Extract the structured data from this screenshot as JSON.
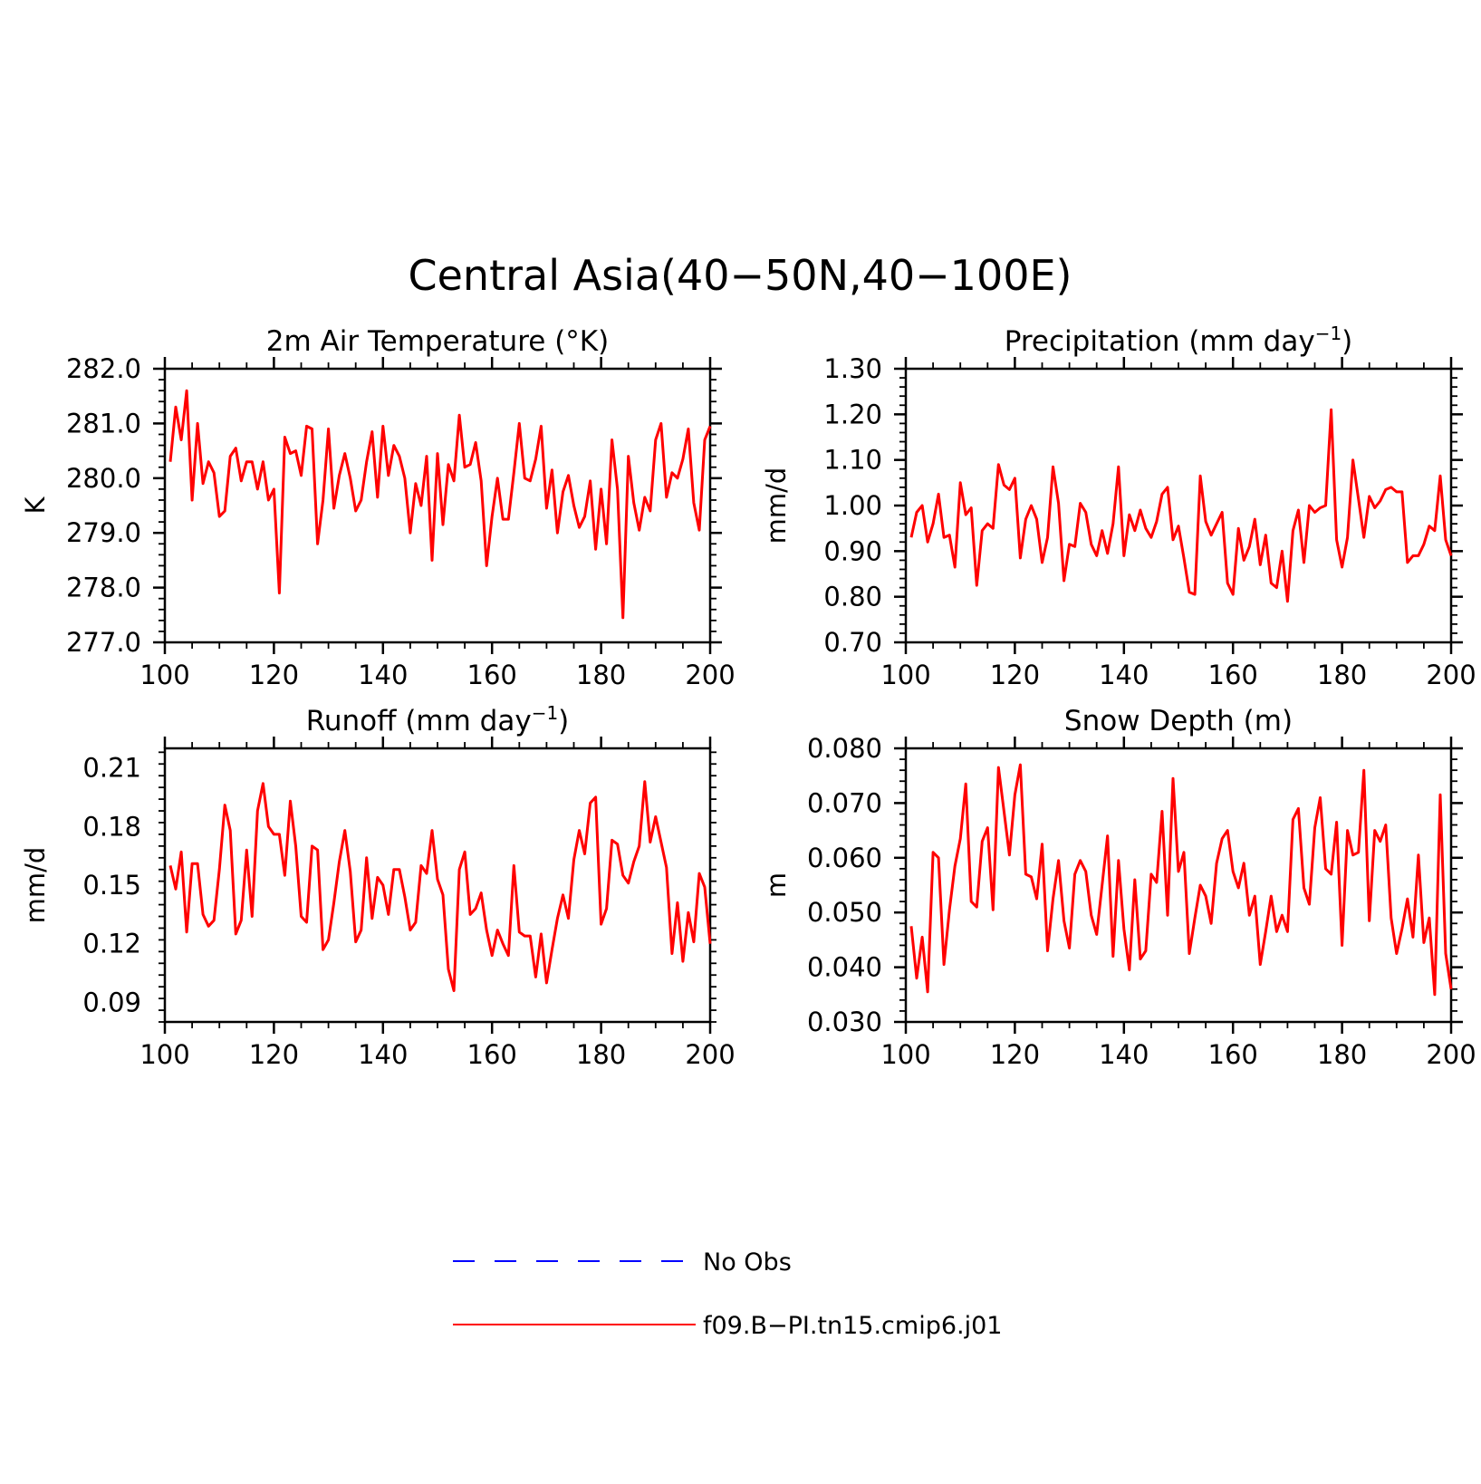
{
  "figure": {
    "title": "Central Asia(40−50N,40−100E)"
  },
  "chart_data": [
    {
      "type": "line",
      "title": "2m Air Temperature (°K)",
      "ylabel": "K",
      "xlim": [
        100,
        200
      ],
      "ylim": [
        277.0,
        282.0
      ],
      "xticks": [
        100,
        120,
        140,
        160,
        180,
        200
      ],
      "xtick_labels": [
        "100",
        "120",
        "140",
        "160",
        "180",
        "200"
      ],
      "yticks": [
        277.0,
        278.0,
        279.0,
        280.0,
        281.0,
        282.0
      ],
      "ytick_labels": [
        "277.0",
        "278.0",
        "279.0",
        "280.0",
        "281.0",
        "282.0"
      ],
      "x_start": 101,
      "series": [
        {
          "color": "#ff0000",
          "values": [
            280.3,
            281.3,
            280.7,
            281.6,
            279.6,
            281.0,
            279.9,
            280.3,
            280.1,
            279.3,
            279.4,
            280.4,
            280.55,
            279.95,
            280.3,
            280.3,
            279.8,
            280.3,
            279.6,
            279.8,
            277.9,
            280.75,
            280.45,
            280.5,
            280.05,
            280.95,
            280.9,
            278.8,
            279.6,
            280.9,
            279.45,
            280.05,
            280.45,
            280.0,
            279.4,
            279.6,
            280.3,
            280.85,
            279.65,
            280.95,
            280.05,
            280.6,
            280.4,
            280.0,
            279.0,
            279.9,
            279.5,
            280.4,
            278.5,
            280.45,
            279.15,
            280.25,
            279.95,
            281.15,
            280.2,
            280.25,
            280.65,
            279.95,
            278.4,
            279.3,
            280.0,
            279.25,
            279.25,
            280.1,
            281.0,
            280.0,
            279.95,
            280.35,
            280.95,
            279.45,
            280.15,
            279.0,
            279.75,
            280.05,
            279.5,
            279.1,
            279.3,
            279.95,
            278.7,
            279.8,
            278.8,
            280.7,
            279.8,
            277.45,
            280.4,
            279.55,
            279.05,
            279.65,
            279.4,
            280.7,
            281.0,
            279.65,
            280.1,
            280.0,
            280.35,
            280.9,
            279.55,
            279.05,
            280.7,
            280.95
          ]
        }
      ]
    },
    {
      "type": "line",
      "title": "Precipitation (mm day",
      "title_sup": "−1",
      "title_end": ")",
      "ylabel": "mm/d",
      "xlim": [
        100,
        200
      ],
      "ylim": [
        0.7,
        1.3
      ],
      "xticks": [
        100,
        120,
        140,
        160,
        180,
        200
      ],
      "xtick_labels": [
        "100",
        "120",
        "140",
        "160",
        "180",
        "200"
      ],
      "yticks": [
        0.7,
        0.8,
        0.9,
        1.0,
        1.1,
        1.2,
        1.3
      ],
      "ytick_labels": [
        "0.70",
        "0.80",
        "0.90",
        "1.00",
        "1.10",
        "1.20",
        "1.30"
      ],
      "x_start": 101,
      "series": [
        {
          "color": "#ff0000",
          "values": [
            0.93,
            0.985,
            1.0,
            0.92,
            0.96,
            1.025,
            0.93,
            0.935,
            0.865,
            1.05,
            0.98,
            0.995,
            0.825,
            0.945,
            0.96,
            0.95,
            1.09,
            1.045,
            1.035,
            1.06,
            0.885,
            0.97,
            1.0,
            0.97,
            0.875,
            0.93,
            1.085,
            1.005,
            0.835,
            0.915,
            0.91,
            1.005,
            0.985,
            0.915,
            0.89,
            0.945,
            0.895,
            0.96,
            1.085,
            0.89,
            0.98,
            0.945,
            0.99,
            0.95,
            0.93,
            0.965,
            1.025,
            1.04,
            0.925,
            0.955,
            0.885,
            0.81,
            0.805,
            1.065,
            0.965,
            0.935,
            0.96,
            0.985,
            0.83,
            0.805,
            0.95,
            0.88,
            0.91,
            0.97,
            0.87,
            0.935,
            0.83,
            0.82,
            0.9,
            0.79,
            0.945,
            0.99,
            0.875,
            1.0,
            0.985,
            0.995,
            1.0,
            1.21,
            0.925,
            0.865,
            0.93,
            1.1,
            1.015,
            0.93,
            1.02,
            0.995,
            1.01,
            1.035,
            1.04,
            1.03,
            1.03,
            0.875,
            0.89,
            0.89,
            0.915,
            0.955,
            0.945,
            1.065,
            0.925,
            0.89
          ]
        }
      ]
    },
    {
      "type": "line",
      "title": "Runoff (mm day",
      "title_sup": "−1",
      "title_end": ")",
      "ylabel": "mm/d",
      "xlim": [
        100,
        200
      ],
      "ylim": [
        0.08,
        0.22
      ],
      "xticks": [
        100,
        120,
        140,
        160,
        180,
        200
      ],
      "xtick_labels": [
        "100",
        "120",
        "140",
        "160",
        "180",
        "200"
      ],
      "yticks": [
        0.09,
        0.12,
        0.15,
        0.18,
        0.21
      ],
      "ytick_labels": [
        "0.09",
        "0.12",
        "0.15",
        "0.18",
        "0.21"
      ],
      "x_start": 101,
      "series": [
        {
          "color": "#ff0000",
          "values": [
            0.16,
            0.148,
            0.167,
            0.126,
            0.161,
            0.161,
            0.135,
            0.129,
            0.132,
            0.158,
            0.191,
            0.178,
            0.125,
            0.132,
            0.168,
            0.134,
            0.188,
            0.202,
            0.18,
            0.176,
            0.176,
            0.155,
            0.193,
            0.17,
            0.134,
            0.131,
            0.17,
            0.168,
            0.117,
            0.122,
            0.141,
            0.162,
            0.178,
            0.157,
            0.121,
            0.127,
            0.164,
            0.133,
            0.154,
            0.15,
            0.135,
            0.158,
            0.158,
            0.144,
            0.127,
            0.131,
            0.16,
            0.156,
            0.178,
            0.153,
            0.145,
            0.107,
            0.096,
            0.158,
            0.167,
            0.135,
            0.138,
            0.146,
            0.127,
            0.114,
            0.127,
            0.12,
            0.114,
            0.16,
            0.126,
            0.124,
            0.124,
            0.103,
            0.125,
            0.1,
            0.117,
            0.133,
            0.145,
            0.133,
            0.163,
            0.178,
            0.166,
            0.192,
            0.195,
            0.13,
            0.138,
            0.173,
            0.171,
            0.155,
            0.151,
            0.162,
            0.17,
            0.203,
            0.172,
            0.185,
            0.172,
            0.159,
            0.115,
            0.141,
            0.111,
            0.136,
            0.121,
            0.156,
            0.149,
            0.12
          ]
        }
      ]
    },
    {
      "type": "line",
      "title": "Snow Depth (m)",
      "ylabel": "m",
      "xlim": [
        100,
        200
      ],
      "ylim": [
        0.03,
        0.08
      ],
      "xticks": [
        100,
        120,
        140,
        160,
        180,
        200
      ],
      "xtick_labels": [
        "100",
        "120",
        "140",
        "160",
        "180",
        "200"
      ],
      "yticks": [
        0.03,
        0.04,
        0.05,
        0.06,
        0.07,
        0.08
      ],
      "ytick_labels": [
        "0.030",
        "0.040",
        "0.050",
        "0.060",
        "0.070",
        "0.080"
      ],
      "x_start": 101,
      "series": [
        {
          "color": "#ff0000",
          "values": [
            0.0475,
            0.038,
            0.0455,
            0.0355,
            0.061,
            0.06,
            0.0405,
            0.0505,
            0.0585,
            0.0635,
            0.0735,
            0.052,
            0.051,
            0.063,
            0.0655,
            0.0505,
            0.0765,
            0.0685,
            0.0605,
            0.0715,
            0.077,
            0.057,
            0.0565,
            0.0525,
            0.0625,
            0.043,
            0.0525,
            0.0595,
            0.0485,
            0.0435,
            0.057,
            0.0595,
            0.0575,
            0.0495,
            0.046,
            0.055,
            0.064,
            0.042,
            0.0595,
            0.047,
            0.0395,
            0.056,
            0.0415,
            0.043,
            0.057,
            0.0555,
            0.0685,
            0.0495,
            0.0745,
            0.0575,
            0.061,
            0.0425,
            0.049,
            0.055,
            0.053,
            0.048,
            0.059,
            0.0635,
            0.065,
            0.0575,
            0.0545,
            0.059,
            0.0495,
            0.053,
            0.0405,
            0.0465,
            0.053,
            0.0465,
            0.0495,
            0.0465,
            0.067,
            0.069,
            0.0545,
            0.0515,
            0.0655,
            0.071,
            0.058,
            0.057,
            0.0665,
            0.044,
            0.065,
            0.0605,
            0.061,
            0.076,
            0.0485,
            0.065,
            0.063,
            0.066,
            0.049,
            0.0425,
            0.047,
            0.0525,
            0.0455,
            0.0605,
            0.0445,
            0.049,
            0.035,
            0.0715,
            0.0425,
            0.036
          ]
        }
      ]
    }
  ],
  "legend": {
    "placement": "bottom-center",
    "items": [
      {
        "label": "No Obs",
        "color": "#0000ff",
        "style": "dashed"
      },
      {
        "label": "f09.B−PI.tn15.cmip6.j01",
        "color": "#ff0000",
        "style": "solid"
      }
    ]
  }
}
